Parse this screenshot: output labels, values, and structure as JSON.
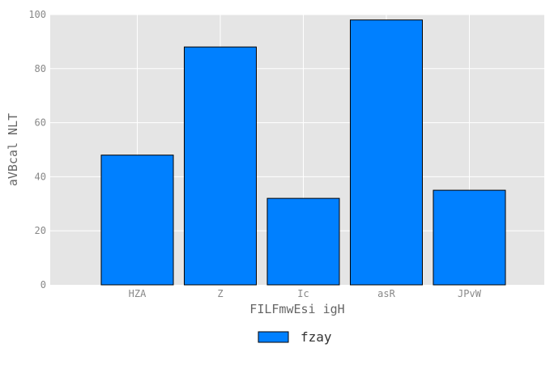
{
  "chart_data": {
    "type": "bar",
    "title": "",
    "xlabel": "FILFmwEsi igH",
    "ylabel": "aVBcal NLT",
    "categories": [
      "HZA",
      "Z",
      "Ic",
      "asR",
      "JPvW"
    ],
    "series": [
      {
        "name": "fzay",
        "values": [
          48,
          88,
          32,
          98,
          35
        ],
        "color": "#0080ff"
      }
    ],
    "ylim": [
      0,
      100
    ],
    "yticks": [
      0,
      20,
      40,
      60,
      80,
      100
    ],
    "grid": true,
    "legend_position": "bottom-center",
    "background_color": "#e5e5e5"
  }
}
